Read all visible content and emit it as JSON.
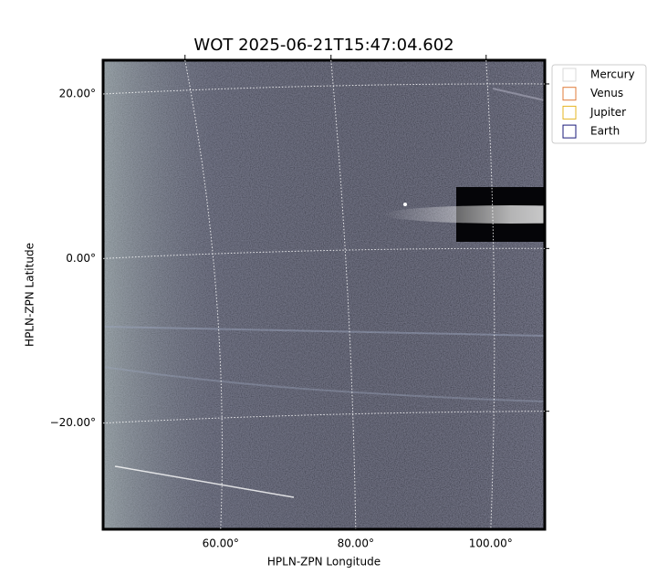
{
  "chart_data": {
    "type": "image",
    "title": "WOT 2025-06-21T15:47:04.602",
    "xlabel": "HPLN-ZPN Longitude",
    "ylabel": "HPLN-ZPN Latitude",
    "xlim": [
      42.6,
      108
    ],
    "ylim": [
      -32.9,
      24.1
    ],
    "xticks": [
      {
        "value": 60,
        "label": "60.00°"
      },
      {
        "value": 80,
        "label": "80.00°"
      },
      {
        "value": 100,
        "label": "100.00°"
      }
    ],
    "yticks": [
      {
        "value": -20,
        "label": "−20.00°"
      },
      {
        "value": 0,
        "label": "0.00°"
      },
      {
        "value": 20,
        "label": "20.00°"
      }
    ],
    "grid": true,
    "legend": [
      {
        "name": "Mercury",
        "color": "#d9d9d9"
      },
      {
        "name": "Venus",
        "color": "#e07b39"
      },
      {
        "name": "Jupiter",
        "color": "#e6b422"
      },
      {
        "name": "Earth",
        "color": "#1a1a7a"
      }
    ]
  }
}
